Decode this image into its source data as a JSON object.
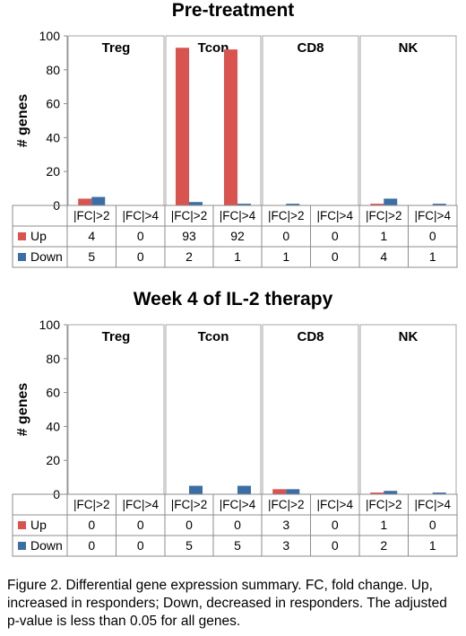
{
  "chart_data": [
    {
      "type": "bar",
      "title": "Pre-treatment",
      "ylabel": "# genes",
      "ylim": [
        0,
        100
      ],
      "yticks": [
        0,
        20,
        40,
        60,
        80,
        100
      ],
      "groups": [
        "Treg",
        "Tcon",
        "CD8",
        "NK"
      ],
      "categories": [
        "|FC|>2",
        "|FC|>4",
        "|FC|>2",
        "|FC|>4",
        "|FC|>2",
        "|FC|>4",
        "|FC|>2",
        "|FC|>4"
      ],
      "series": [
        {
          "name": "Up",
          "values": [
            4,
            0,
            93,
            92,
            0,
            0,
            1,
            0
          ]
        },
        {
          "name": "Down",
          "values": [
            5,
            0,
            2,
            1,
            1,
            0,
            4,
            1
          ]
        }
      ],
      "grid": false,
      "legend": "table-below"
    },
    {
      "type": "bar",
      "title": "Week 4 of IL-2 therapy",
      "ylabel": "# genes",
      "ylim": [
        0,
        100
      ],
      "yticks": [
        0,
        20,
        40,
        60,
        80,
        100
      ],
      "groups": [
        "Treg",
        "Tcon",
        "CD8",
        "NK"
      ],
      "categories": [
        "|FC|>2",
        "|FC|>4",
        "|FC|>2",
        "|FC|>4",
        "|FC|>2",
        "|FC|>4",
        "|FC|>2",
        "|FC|>4"
      ],
      "series": [
        {
          "name": "Up",
          "values": [
            0,
            0,
            0,
            0,
            3,
            0,
            1,
            0
          ]
        },
        {
          "name": "Down",
          "values": [
            0,
            0,
            5,
            5,
            3,
            0,
            2,
            1
          ]
        }
      ],
      "grid": false,
      "legend": "table-below"
    }
  ],
  "colors": {
    "Up": "#d9534f",
    "Down": "#3a6ea5"
  },
  "caption": "Figure 2. Differential gene expression summary. FC, fold change. Up, increased in responders; Down, decreased in responders. The adjusted p-value is less than 0.05 for all genes."
}
